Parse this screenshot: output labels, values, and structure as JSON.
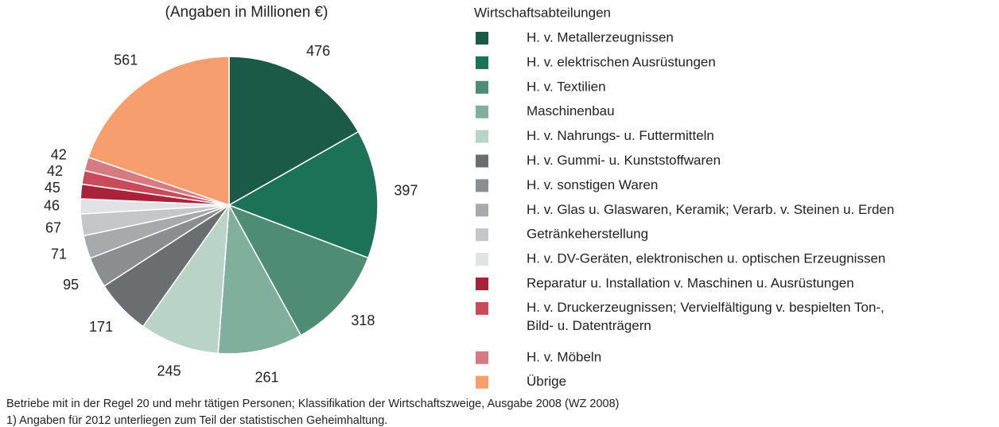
{
  "chart_data": {
    "type": "pie",
    "subtitle": "(Angaben in Millionen €)",
    "legend_title": "Wirtschaftsabteilungen",
    "categories": [
      "H. v. Metallerzeugnissen",
      "H. v. elektrischen Ausrüstungen",
      "H. v. Textilien",
      "Maschinenbau",
      "H. v. Nahrungs- u. Futtermitteln",
      "H. v. Gummi- u. Kunststoffwaren",
      "H. v. sonstigen Waren",
      "H. v. Glas u. Glaswaren, Keramik; Verarb. v. Steinen u. Erden",
      "Getränkeherstellung",
      "H. v. DV-Geräten, elektronischen u. optischen Erzeugnissen",
      "Reparatur u. Installation v. Maschinen u. Ausrüstungen",
      [
        "H. v. Druckerzeugnissen; Vervielfältigung  v. bespielten Ton-,",
        "Bild- u. Datenträgern"
      ],
      "H. v. Möbeln",
      "Übrige"
    ],
    "values": [
      476,
      397,
      318,
      261,
      245,
      171,
      95,
      71,
      67,
      46,
      45,
      42,
      42,
      561
    ],
    "colors": [
      "#1a5a46",
      "#1b7256",
      "#4e8c76",
      "#80b09b",
      "#b9d4c7",
      "#6b6e70",
      "#8b8e91",
      "#a7a9ab",
      "#c5c6c8",
      "#e1e2e3",
      "#a8223a",
      "#c84b5b",
      "#d67b81",
      "#f69e6e"
    ],
    "legend": "right",
    "notes": [
      "Betriebe mit in der Regel 20 und mehr tätigen Personen; Klassifikation der Wirtschaftszweige, Ausgabe 2008 (WZ 2008)",
      "1) Angaben für 2012 unterliegen zum Teil der statistischen Geheimhaltung."
    ]
  }
}
